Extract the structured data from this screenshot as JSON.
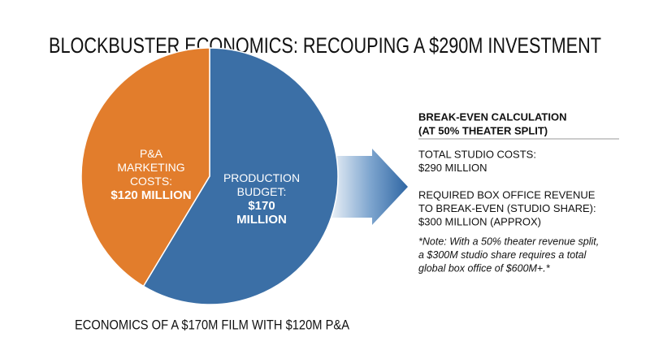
{
  "chart_data": {
    "type": "pie",
    "title": "BLOCKBUSTER ECONOMICS: RECOUPING A $290M INVESTMENT",
    "caption": "ECONOMICS OF A $170M FILM WITH $120M P&A",
    "categories": [
      "PRODUCTION BUDGET:",
      "P&A MARKETING COSTS:"
    ],
    "values": [
      170,
      120
    ],
    "value_labels": [
      "$170 MILLION",
      "$120 MILLION"
    ],
    "colors": [
      "#3b6fa6",
      "#e27d2c"
    ],
    "annotations": {
      "heading": [
        "BREAK-EVEN CALCULATION",
        "(AT 50% THEATER SPLIT)"
      ],
      "items": [
        [
          "TOTAL STUDIO COSTS:",
          "$290 MILLION"
        ],
        [
          "REQUIRED BOX OFFICE REVENUE",
          "TO BREAK-EVEN (STUDIO SHARE):",
          "$300 MILLION (APPROX)"
        ]
      ],
      "note": [
        "*Note: With a 50% theater revenue split,",
        "a $300M studio share requires a total",
        "global box office of $600M+.*"
      ]
    }
  }
}
